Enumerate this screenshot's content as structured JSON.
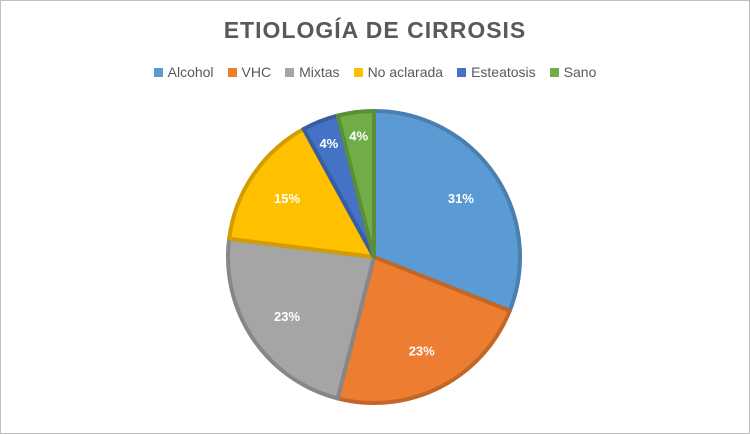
{
  "chart_data": {
    "type": "pie",
    "title": "ETIOLOGÍA DE CIRROSIS",
    "legend_position": "top",
    "categories": [
      "Alcohol",
      "VHC",
      "Mixtas",
      "No aclarada",
      "Esteatosis",
      "Sano"
    ],
    "values": [
      31,
      23,
      23,
      15,
      4,
      4
    ],
    "data_labels": [
      "31%",
      "23%",
      "23%",
      "15%",
      "4%",
      "4%"
    ],
    "colors": [
      "#5B9BD5",
      "#ED7D31",
      "#A5A5A5",
      "#FFC000",
      "#4472C4",
      "#70AD47"
    ]
  }
}
